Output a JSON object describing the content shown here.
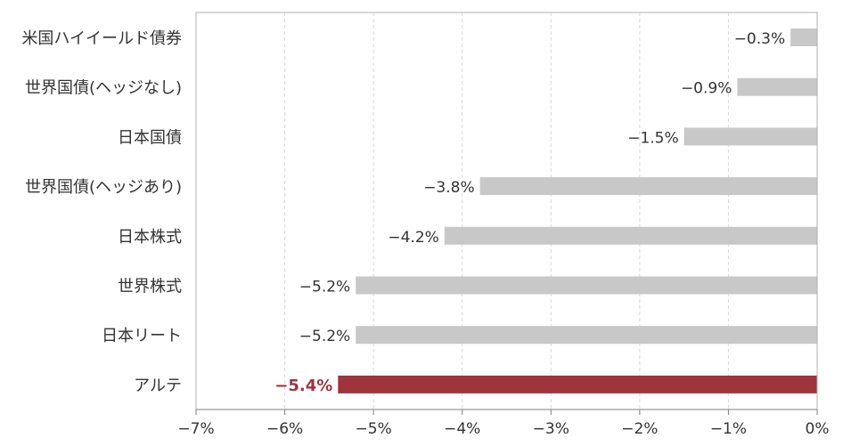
{
  "chart_data": {
    "type": "bar",
    "orientation": "horizontal",
    "title": "",
    "xlabel": "",
    "ylabel": "",
    "xlim": [
      -7,
      0
    ],
    "grid": "vertical dashed",
    "legend": "none",
    "categories": [
      "米国ハイイールド債券",
      "世界国債(ヘッジなし)",
      "日本国債",
      "世界国債(ヘッジあり)",
      "日本株式",
      "世界株式",
      "日本リート",
      "アルテ"
    ],
    "values": [
      -0.3,
      -0.9,
      -1.5,
      -3.8,
      -4.2,
      -5.2,
      -5.2,
      -5.4
    ],
    "data_labels": [
      "−0.3%",
      "−0.9%",
      "−1.5%",
      "−3.8%",
      "−4.2%",
      "−5.2%",
      "−5.2%",
      "−5.4%"
    ],
    "x_ticks": [
      -7,
      -6,
      -5,
      -4,
      -3,
      -2,
      -1,
      0
    ],
    "x_tick_labels": [
      "−7%",
      "−6%",
      "−5%",
      "−4%",
      "−3%",
      "−2%",
      "−1%",
      "0%"
    ],
    "highlight_category": "アルテ",
    "colors": {
      "bar": "#c8c8c8",
      "highlight": "#a0343c",
      "grid": "#d9d9d9",
      "axis": "#7f7f7f"
    }
  }
}
